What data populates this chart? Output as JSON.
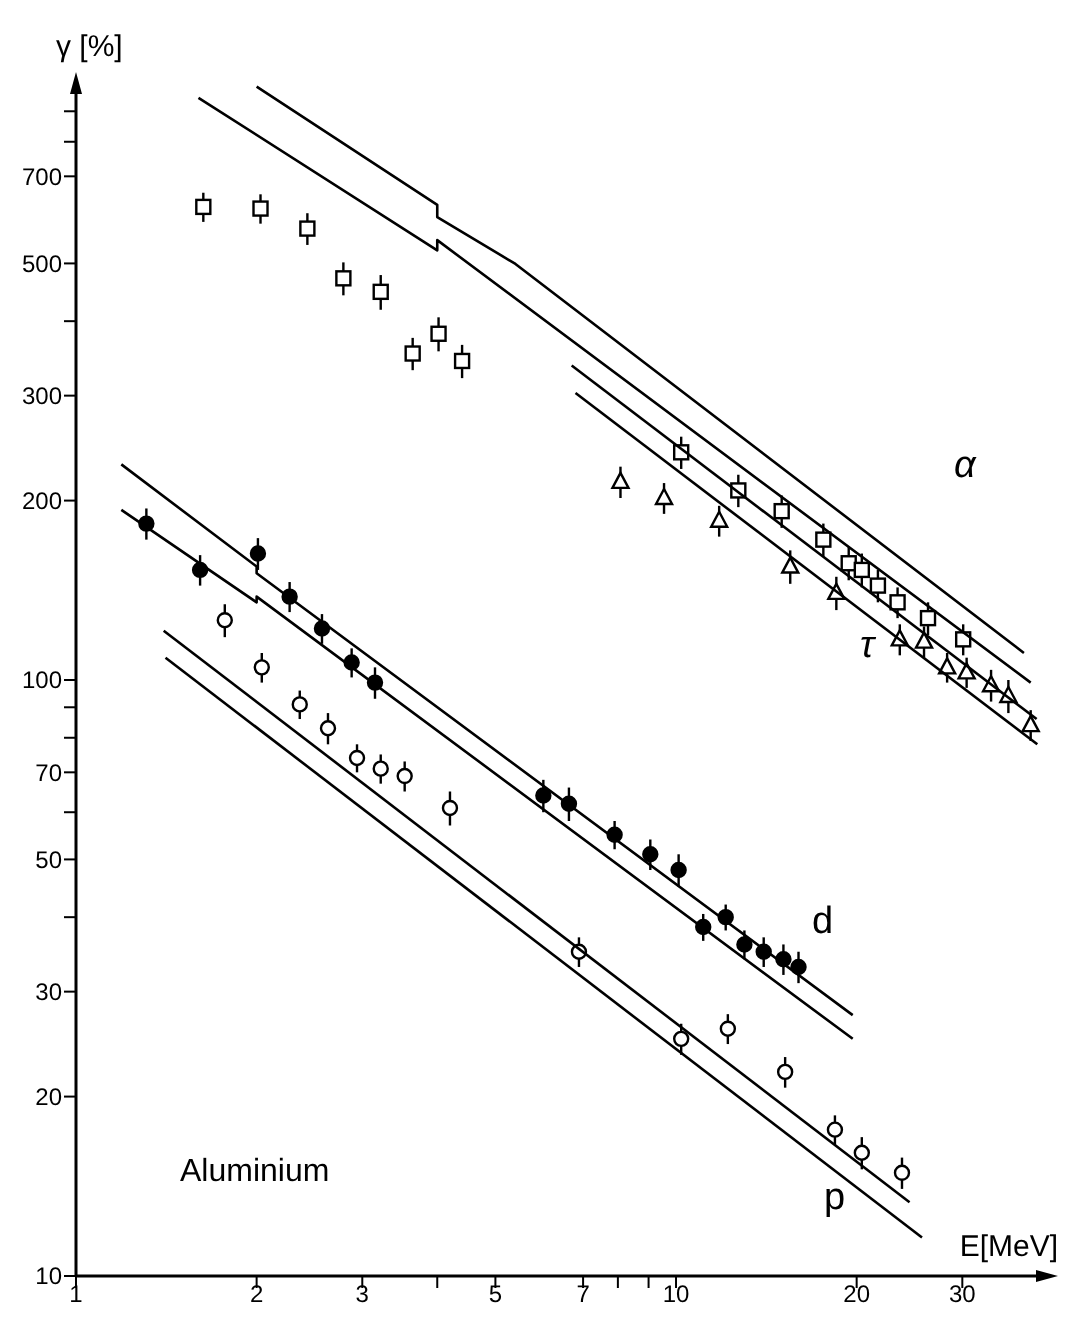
{
  "chart_data": {
    "type": "scatter",
    "xlabel": "E[MeV]",
    "ylabel": "γ [%]",
    "log": "xy",
    "grid": false,
    "xlim": [
      1,
      42
    ],
    "ylim": [
      10,
      1000
    ],
    "xticks": [
      1,
      2,
      3,
      {
        "value": 4,
        "label": null
      },
      5,
      7,
      {
        "value": 8,
        "label": null
      },
      {
        "value": 9,
        "label": null
      },
      10,
      20,
      30
    ],
    "yticks": [
      10,
      20,
      30,
      {
        "value": 40,
        "label": null
      },
      50,
      {
        "value": 60,
        "label": null
      },
      70,
      {
        "value": 80,
        "label": null
      },
      {
        "value": 90,
        "label": null
      },
      100,
      200,
      300,
      {
        "value": 400,
        "label": null
      },
      500,
      700,
      {
        "value": 800,
        "label": null
      },
      {
        "value": 900,
        "label": null
      }
    ],
    "annotations": [
      "α",
      "τ",
      "d",
      "p",
      "Aluminium"
    ],
    "series": [
      {
        "marker": "square",
        "color": "#ffffff",
        "x": [
          1.63,
          2.03,
          2.43,
          2.79,
          3.22,
          3.64,
          4.02,
          4.4,
          10.2,
          12.7,
          15,
          17.6,
          19.4,
          20.4,
          21.7,
          23.4,
          26.3,
          30.1
        ],
        "values": [
          622,
          618,
          572,
          472,
          448,
          353,
          381,
          343,
          241,
          208,
          192,
          172,
          157,
          153,
          144,
          135,
          127,
          117
        ],
        "errors": [
          35,
          35,
          35,
          30,
          30,
          22,
          25,
          22,
          15,
          13,
          12,
          11,
          10,
          10,
          9,
          8,
          8,
          7
        ]
      },
      {
        "marker": "triangle",
        "color": "#ffffff",
        "x": [
          8.08,
          9.55,
          11.8,
          15.5,
          18.5,
          23.6,
          25.9,
          28.3,
          30.5,
          33.5,
          35.8,
          39
        ],
        "values": [
          215,
          202,
          185,
          155,
          140,
          117,
          116,
          105,
          103,
          98,
          94,
          84
        ],
        "errors": [
          13,
          12,
          11,
          10,
          9,
          7,
          7,
          6,
          6,
          6,
          6,
          5
        ]
      },
      {
        "marker": "circle",
        "color": "#000000",
        "x": [
          1.31,
          1.61,
          2.01,
          2.27,
          2.57,
          2.88,
          3.15,
          6.01,
          6.63,
          7.9,
          9.06,
          10.1,
          11.1,
          12.1,
          13,
          14,
          15.1,
          16
        ],
        "values": [
          183,
          153,
          163,
          138,
          122,
          107,
          99,
          64,
          62,
          55,
          51,
          48,
          38.5,
          40,
          36,
          35,
          34,
          33
        ],
        "errors": [
          11,
          9,
          10,
          8,
          7,
          6,
          6,
          4,
          4,
          3,
          3,
          3,
          2,
          2,
          2,
          2,
          2,
          2
        ]
      },
      {
        "marker": "circle",
        "color": "#ffffff",
        "x": [
          1.77,
          2.04,
          2.36,
          2.63,
          2.94,
          3.22,
          3.53,
          4.2,
          6.89,
          10.2,
          12.2,
          15.2,
          18.4,
          20.4,
          23.8
        ],
        "values": [
          126,
          105,
          91,
          83,
          74,
          71,
          69,
          61,
          35,
          25,
          26,
          22,
          17.6,
          16.1,
          14.9
        ],
        "errors": [
          8,
          6,
          5,
          5,
          4,
          4,
          4,
          4,
          2,
          1.5,
          1.5,
          1.3,
          1,
          1,
          0.9
        ]
      },
      {
        "type": "line",
        "marker": "none",
        "color": "#000000",
        "x": [
          2,
          4,
          4,
          5.4,
          38
        ],
        "values": [
          990,
          627,
          598,
          499,
          111
        ]
      },
      {
        "type": "line",
        "marker": "none",
        "color": "#000000",
        "x": [
          1.6,
          4,
          4,
          39
        ],
        "values": [
          948,
          526,
          547,
          99
        ]
      },
      {
        "type": "line",
        "marker": "none",
        "color": "#000000",
        "x": [
          6.7,
          39.9
        ],
        "values": [
          337,
          86
        ]
      },
      {
        "type": "line",
        "marker": "none",
        "color": "#000000",
        "x": [
          6.8,
          40
        ],
        "values": [
          303,
          78
        ]
      },
      {
        "type": "line",
        "marker": "none",
        "color": "#000000",
        "x": [
          1.19,
          2,
          2,
          19.7
        ],
        "values": [
          230,
          155,
          151,
          27.4
        ]
      },
      {
        "type": "line",
        "marker": "none",
        "color": "#000000",
        "x": [
          1.19,
          2,
          2,
          19.7
        ],
        "values": [
          193,
          135,
          138,
          25
        ]
      },
      {
        "type": "line",
        "marker": "none",
        "color": "#000000",
        "x": [
          1.4,
          24.5
        ],
        "values": [
          121,
          13.3
        ]
      },
      {
        "type": "line",
        "marker": "none",
        "color": "#000000",
        "x": [
          1.41,
          25.7
        ],
        "values": [
          109,
          11.6
        ]
      }
    ]
  }
}
